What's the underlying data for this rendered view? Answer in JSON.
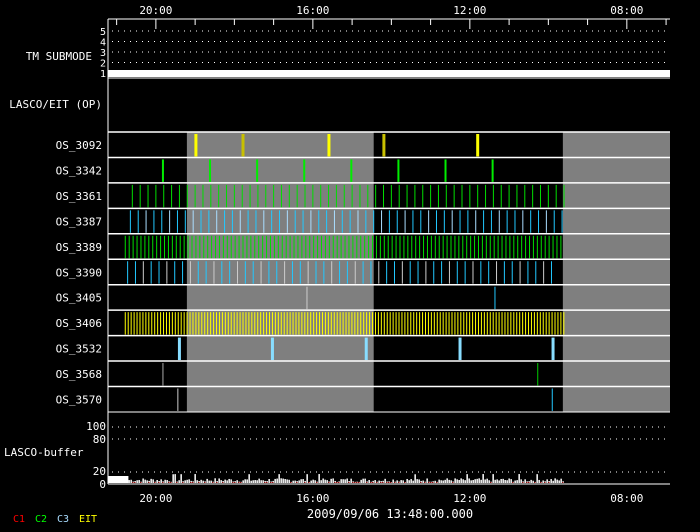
{
  "chart_data": {
    "type": "timeline",
    "x_axis": {
      "direction": "reversed",
      "range_hours": [
        21.22,
        6.9
      ],
      "tick_labels": [
        {
          "label": "20:00",
          "h": 20
        },
        {
          "label": "16:00",
          "h": 16
        },
        {
          "label": "12:00",
          "h": 12
        },
        {
          "label": "08:00",
          "h": 8
        }
      ],
      "minor_tick_hours": 1
    },
    "date_label": "2009/09/06 13:48:00.000",
    "tm_submode": {
      "label": "TM SUBMODE",
      "levels": [
        "1",
        "2",
        "3",
        "4",
        "5"
      ],
      "value": 1
    },
    "op_panel": {
      "label": "LASCO/EIT (OP)"
    },
    "gray_periods_hours": [
      [
        19.21,
        14.45
      ],
      [
        9.63,
        6.9
      ]
    ],
    "rows": [
      {
        "label": "OS_3092",
        "color": "#ffff00",
        "alt_color": "#c8c000",
        "width": 3,
        "events": [
          18.98,
          17.78,
          15.59,
          14.19,
          11.8
        ],
        "alt": [
          17.78,
          14.19
        ]
      },
      {
        "label": "OS_3342",
        "color": "#00ee00",
        "width": 2,
        "start": 19.82,
        "end": 10.3,
        "step": 1.2
      },
      {
        "label": "OS_3361",
        "color": "#00dd00",
        "width": 1,
        "start": 20.6,
        "end": 9.6,
        "step": 0.2
      },
      {
        "label": "OS_3387",
        "color": "#22c8ff",
        "alt_color": "#aaddff",
        "width": 1,
        "start": 20.65,
        "end": 9.6,
        "step": 0.2
      },
      {
        "label": "OS_3389",
        "color": "#00dd00",
        "width": 1,
        "start": 20.78,
        "end": 9.6,
        "step": 0.1
      },
      {
        "label": "OS_3390",
        "color": "#22c8ff",
        "alt_color": "#cccccc",
        "width": 1,
        "start": 20.72,
        "end": 9.75,
        "step": 0.2
      },
      {
        "label": "OS_3405",
        "color": "#cccccc",
        "alt_color": "#22c8ff",
        "width": 1,
        "events": [
          16.15,
          11.36
        ],
        "alt": [
          11.36
        ]
      },
      {
        "label": "OS_3406",
        "color": "#ffff00",
        "width": 1,
        "start": 20.78,
        "end": 9.6,
        "step": 0.075
      },
      {
        "label": "OS_3532",
        "color": "#88ddff",
        "width": 3,
        "events": [
          19.4,
          17.03,
          14.64,
          12.25,
          9.88
        ]
      },
      {
        "label": "OS_3568",
        "color": "#00cc00",
        "alt_color": "#aaaaaa",
        "width": 1,
        "events": [
          19.82,
          10.27
        ],
        "alt": [
          19.82
        ]
      },
      {
        "label": "OS_3570",
        "color": "#22c8ff",
        "alt_color": "#cccccc",
        "width": 1,
        "events": [
          19.44,
          9.9
        ],
        "alt": [
          19.44
        ]
      }
    ],
    "buffer": {
      "label": "LASCO-buffer",
      "y_ticks": [
        "100",
        "80",
        "20",
        "0"
      ],
      "y_tick_values": [
        100,
        80,
        20,
        0
      ],
      "initial_level": 12,
      "initial_until_hours": 20.7,
      "typical_level": 5
    },
    "legend": [
      {
        "label": "C1",
        "color": "#ff0000"
      },
      {
        "label": "C2",
        "color": "#00ff00"
      },
      {
        "label": "C3",
        "color": "#aaddff"
      },
      {
        "label": "EIT",
        "color": "#ffff00"
      }
    ]
  }
}
